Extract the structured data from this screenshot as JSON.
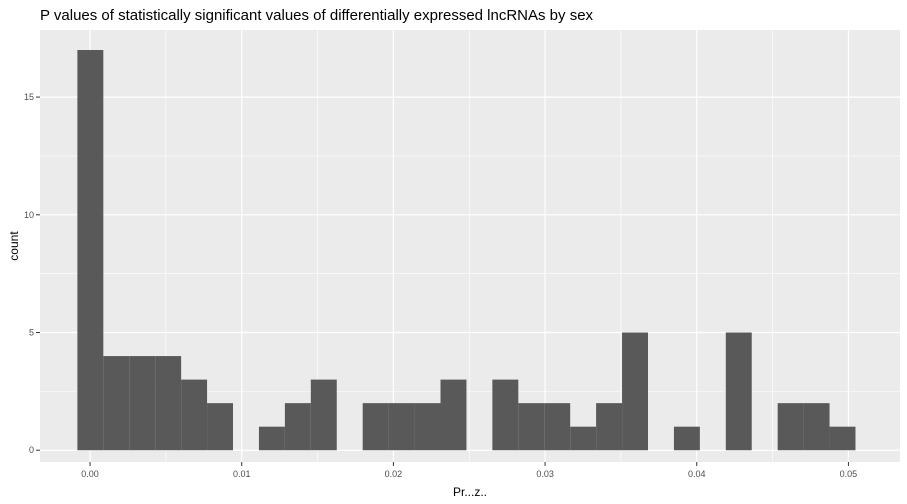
{
  "chart_data": {
    "type": "bar",
    "title": "P values of statistically significant values of differentially expressed lncRNAs by sex",
    "xlabel": "Pr...z..",
    "ylabel": "count",
    "x_ticks": [
      {
        "value": 0.0,
        "label": "0.00"
      },
      {
        "value": 0.01,
        "label": "0.01"
      },
      {
        "value": 0.02,
        "label": "0.02"
      },
      {
        "value": 0.03,
        "label": "0.03"
      },
      {
        "value": 0.04,
        "label": "0.04"
      },
      {
        "value": 0.05,
        "label": "0.05"
      }
    ],
    "y_ticks": [
      {
        "value": 0,
        "label": "0"
      },
      {
        "value": 5,
        "label": "5"
      },
      {
        "value": 10,
        "label": "10"
      },
      {
        "value": 15,
        "label": "15"
      }
    ],
    "xlim": [
      -0.0033,
      0.0534
    ],
    "ylim": [
      -0.5,
      17.85
    ],
    "bin_width": 0.00171,
    "first_bin_center": 2e-05,
    "values": [
      17,
      4,
      4,
      4,
      3,
      2,
      0,
      1,
      2,
      3,
      0,
      2,
      2,
      2,
      3,
      0,
      3,
      2,
      2,
      1,
      2,
      5,
      0,
      1,
      0,
      5,
      0,
      2,
      2,
      1
    ],
    "bar_color": "#595959",
    "panel_color": "#ebebeb",
    "grid": true,
    "grid_color": "#ffffff"
  }
}
